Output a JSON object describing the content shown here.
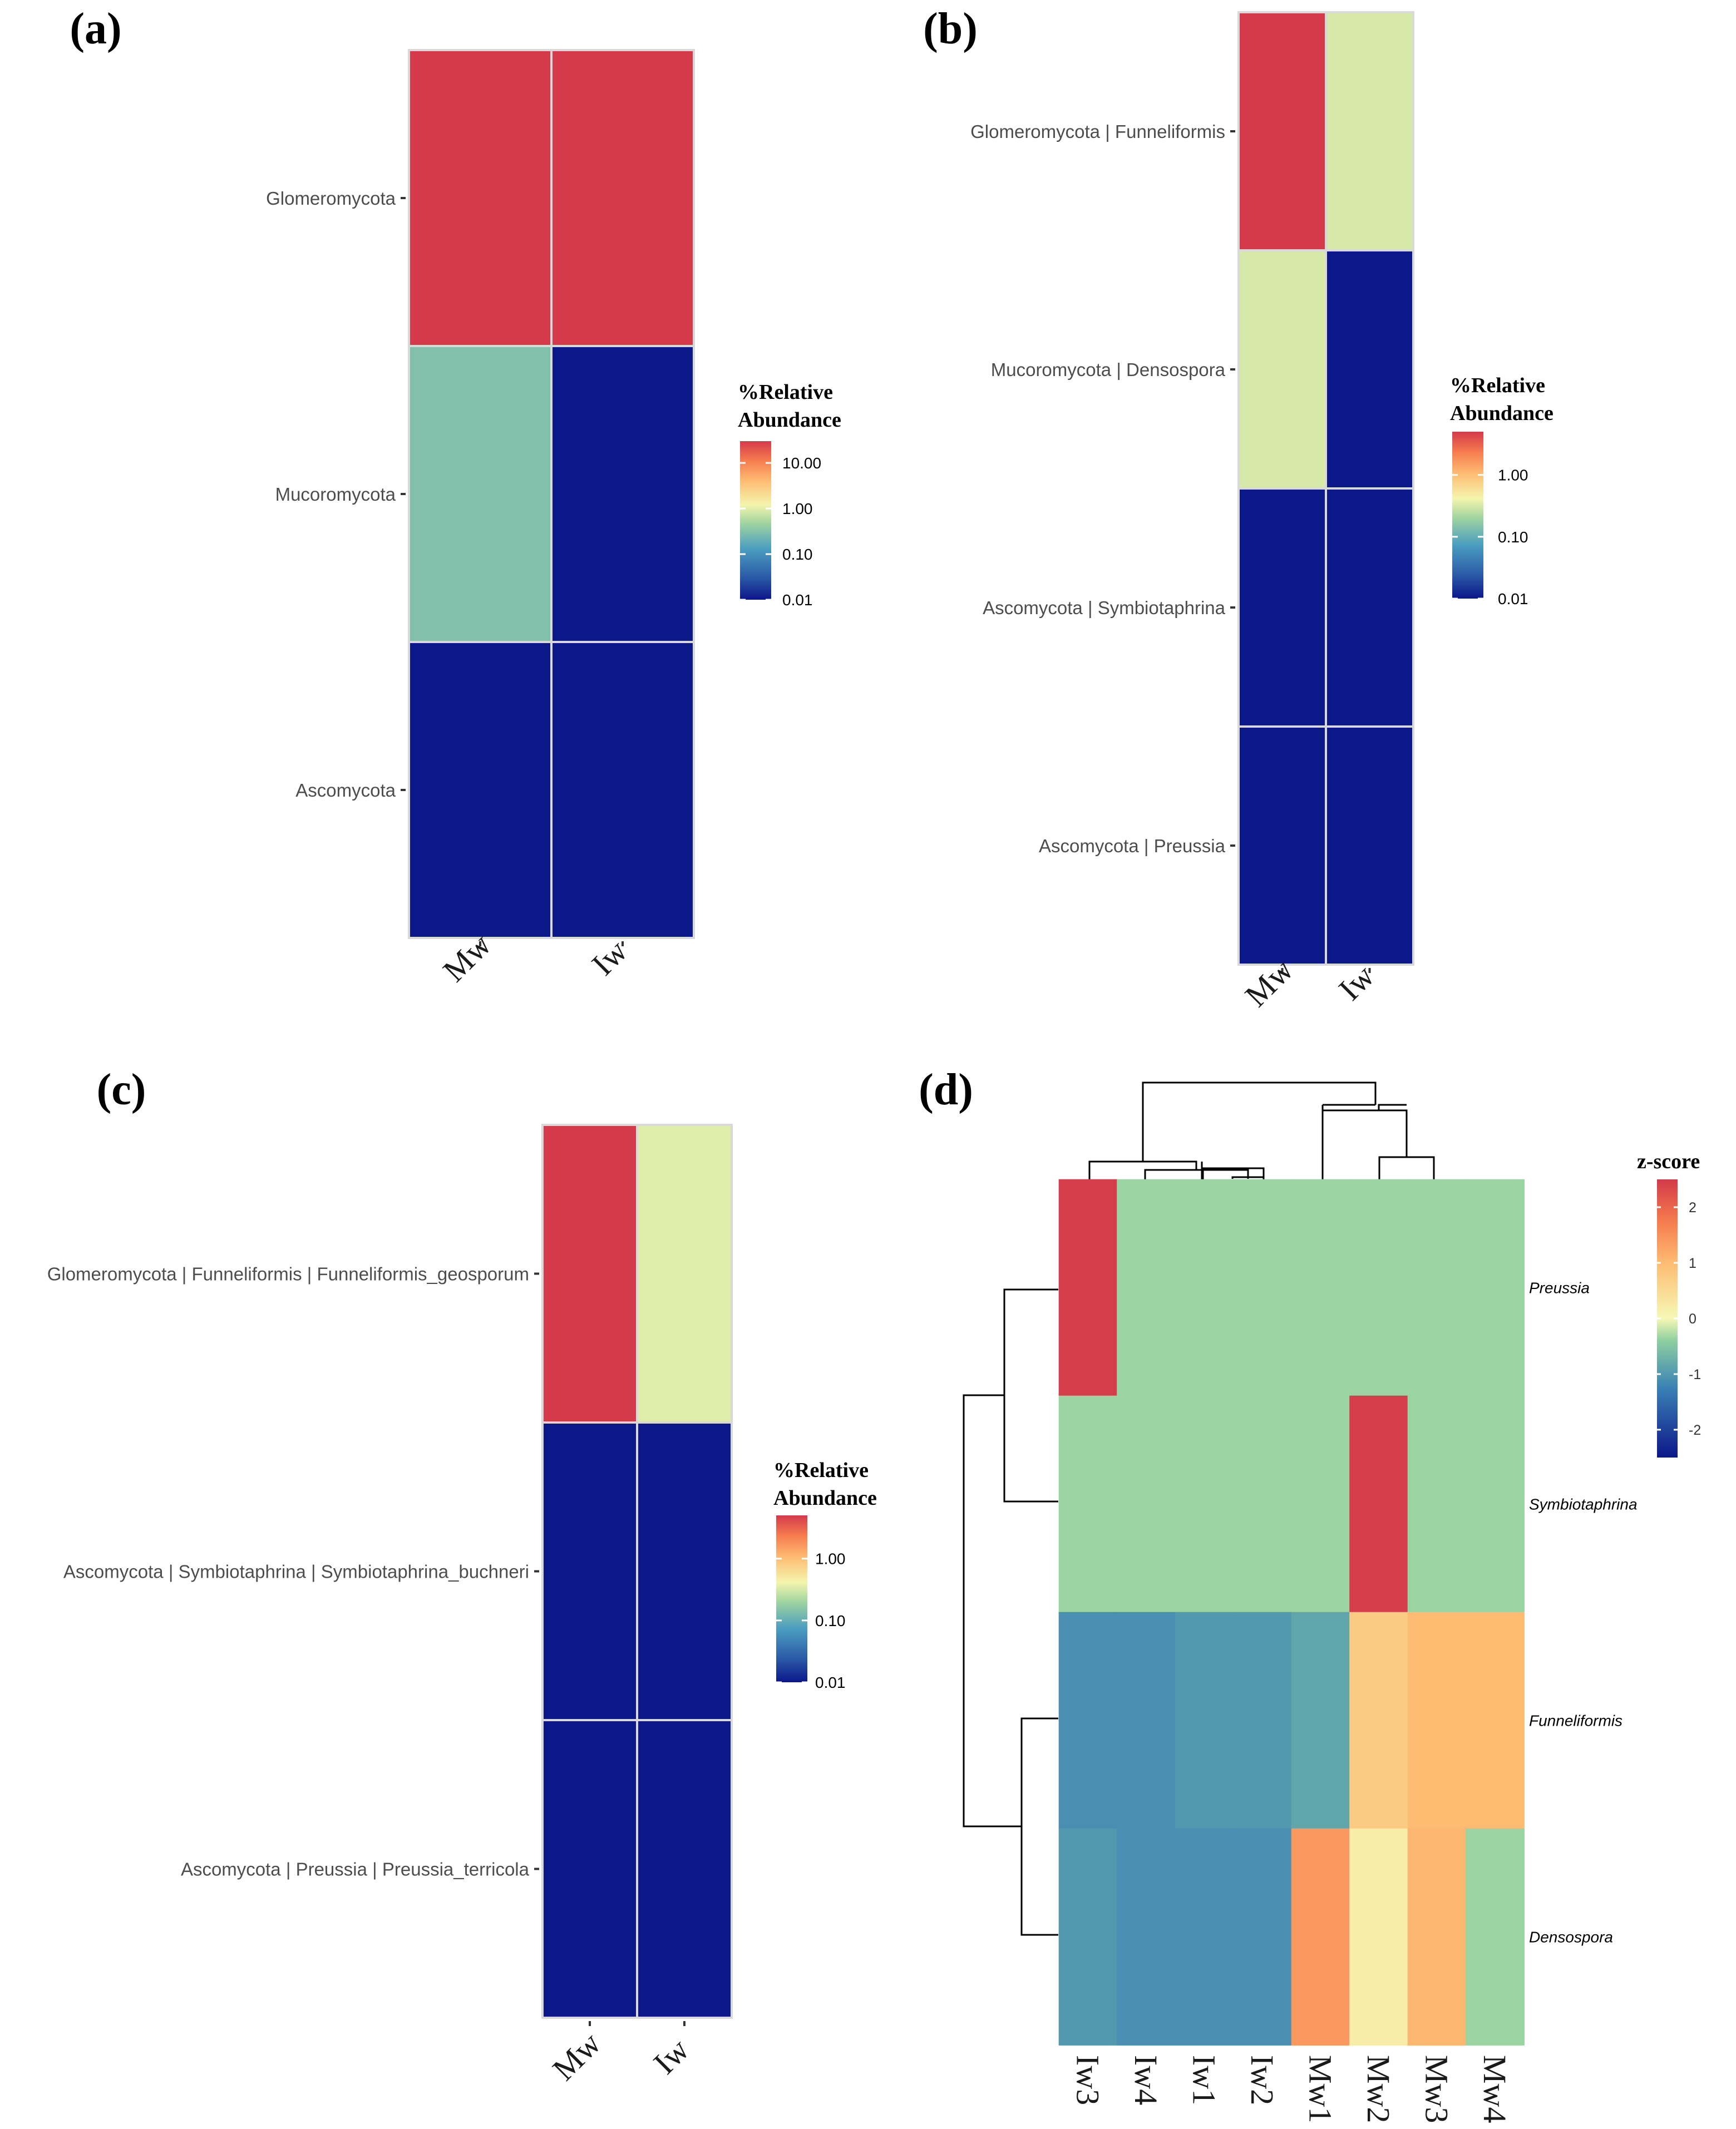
{
  "chart_data": [
    {
      "panel": "(a)",
      "type": "heatmap",
      "rows": [
        "Glomeromycota",
        "Mucoromycota",
        "Ascomycota"
      ],
      "columns": [
        "Mw",
        "Iw"
      ],
      "values": [
        [
          30.0,
          30.0
        ],
        [
          0.3,
          0.01
        ],
        [
          0.01,
          0.01
        ]
      ],
      "value_scale": "log10",
      "color_range": [
        0.01,
        30.0
      ],
      "legend_title": [
        "%Relative",
        "Abundance"
      ],
      "legend_ticks": [
        {
          "value": 10.0,
          "label": "10.00"
        },
        {
          "value": 1.0,
          "label": "1.00"
        },
        {
          "value": 0.1,
          "label": "0.10"
        },
        {
          "value": 0.01,
          "label": "0.01"
        }
      ]
    },
    {
      "panel": "(b)",
      "type": "heatmap",
      "rows": [
        "Glomeromycota | Funneliformis",
        "Mucoromycota | Densospora",
        "Ascomycota | Symbiotaphrina",
        "Ascomycota | Preussia"
      ],
      "columns": [
        "Mw",
        "Iw"
      ],
      "values": [
        [
          5.0,
          0.32
        ],
        [
          0.32,
          0.01
        ],
        [
          0.01,
          0.01
        ],
        [
          0.01,
          0.01
        ]
      ],
      "value_scale": "log10",
      "color_range": [
        0.01,
        5.0
      ],
      "legend_title": [
        "%Relative",
        "Abundance"
      ],
      "legend_ticks": [
        {
          "value": 1.0,
          "label": "1.00"
        },
        {
          "value": 0.1,
          "label": "0.10"
        },
        {
          "value": 0.01,
          "label": "0.01"
        }
      ]
    },
    {
      "panel": "(c)",
      "type": "heatmap",
      "rows": [
        "Glomeromycota | Funneliformis | Funneliformis_geosporum",
        "Ascomycota | Symbiotaphrina | Symbiotaphrina_buchneri",
        "Ascomycota | Preussia | Preussia_terricola"
      ],
      "columns": [
        "Mw",
        "Iw"
      ],
      "values": [
        [
          5.0,
          0.35
        ],
        [
          0.01,
          0.01
        ],
        [
          0.01,
          0.01
        ]
      ],
      "value_scale": "log10",
      "color_range": [
        0.01,
        5.0
      ],
      "legend_title": [
        "%Relative",
        "Abundance"
      ],
      "legend_ticks": [
        {
          "value": 1.0,
          "label": "1.00"
        },
        {
          "value": 0.1,
          "label": "0.10"
        },
        {
          "value": 0.01,
          "label": "0.01"
        }
      ]
    },
    {
      "panel": "(d)",
      "type": "heatmap",
      "rows": [
        "Preussia",
        "Symbiotaphrina",
        "Funneliformis",
        "Densospora"
      ],
      "columns": [
        "Iw3",
        "Iw4",
        "Iw1",
        "Iw2",
        "Mw1",
        "Mw2",
        "Mw3",
        "Mw4"
      ],
      "values": [
        [
          2.47,
          -0.35,
          -0.35,
          -0.35,
          -0.35,
          -0.35,
          -0.35,
          -0.35
        ],
        [
          -0.35,
          -0.35,
          -0.35,
          -0.35,
          -0.35,
          2.47,
          -0.35,
          -0.35
        ],
        [
          -1.1,
          -1.1,
          -1.0,
          -1.0,
          -0.85,
          0.75,
          1.0,
          1.0
        ],
        [
          -1.0,
          -1.1,
          -1.1,
          -1.1,
          1.4,
          0.2,
          1.05,
          -0.35
        ]
      ],
      "value_scale": "linear",
      "color_range": [
        -2.5,
        2.5
      ],
      "legend_title": [
        "z-score"
      ],
      "legend_ticks": [
        {
          "value": 2,
          "label": "2"
        },
        {
          "value": 1,
          "label": "1"
        },
        {
          "value": 0,
          "label": "0"
        },
        {
          "value": -1,
          "label": "-1"
        },
        {
          "value": -2,
          "label": "-2"
        }
      ],
      "column_dendrogram": "((Iw3,(Iw4,(Iw1,Iw2))),(Mw1,(Mw2,(Mw3,Mw4))))",
      "row_dendrogram": "((Preussia,Symbiotaphrina),(Funneliformis,Densospora))"
    }
  ]
}
